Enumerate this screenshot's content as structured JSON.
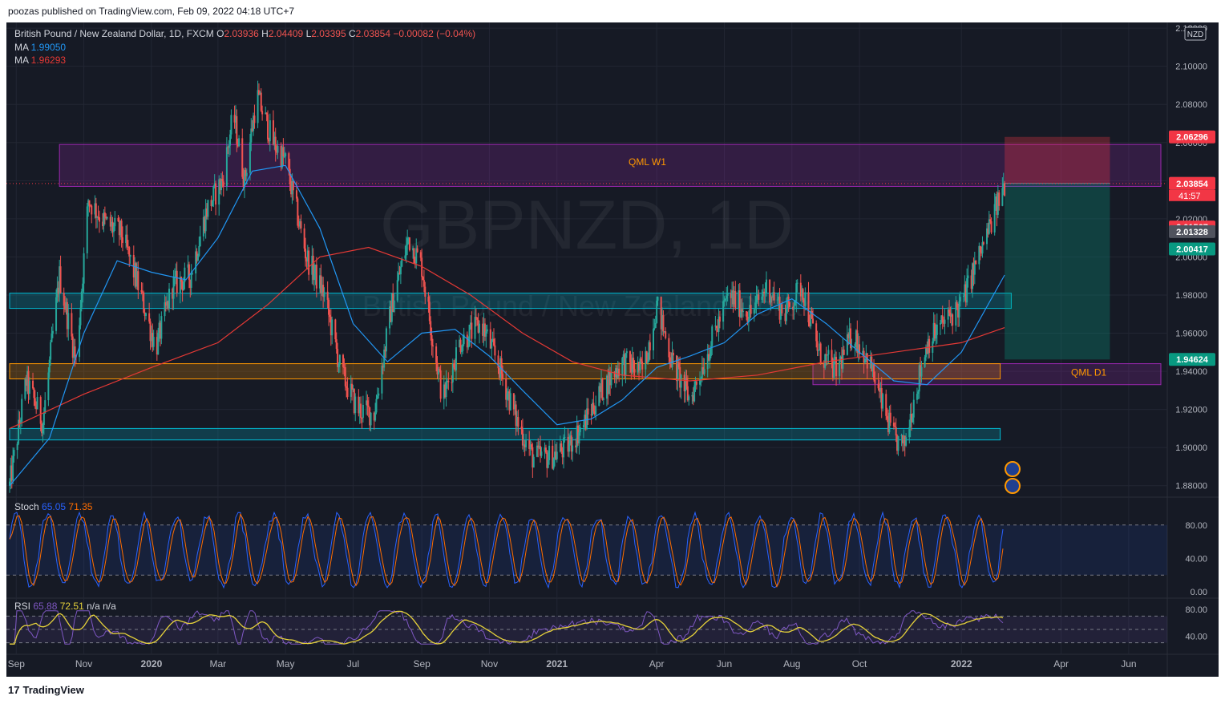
{
  "header": {
    "published_line": "poozas published on TradingView.com, Feb 09, 2022 04:18 UTC+7"
  },
  "footer": {
    "brand": "TradingView",
    "logo_glyph": "17"
  },
  "watermark": {
    "symbol": "GBPNZD, 1D",
    "name": "British Pound / New Zealand Dollar"
  },
  "legend": {
    "title": "British Pound / New Zealand Dollar, 1D, FXCM",
    "o_label": "O",
    "o": "2.03936",
    "h_label": "H",
    "h": "2.04409",
    "l_label": "L",
    "l": "2.03395",
    "c_label": "C",
    "c": "2.03854",
    "change": "−0.00082 (−0.04%)",
    "ma1_label": "MA",
    "ma1": "1.99050",
    "ma2_label": "MA",
    "ma2": "1.96293",
    "stoch_label": "Stoch",
    "stoch_k": "65.05",
    "stoch_d": "71.35",
    "rsi_label": "RSI",
    "rsi": "65.88",
    "rsi_ma": "72.51",
    "rsi_na1": "n/a",
    "rsi_na2": "n/a"
  },
  "currency_badge": "NZD",
  "countdown": "41:57",
  "annotations": {
    "zone_top": "QML W1",
    "zone_right": "QML D1"
  },
  "colors": {
    "background": "#161a25",
    "grid": "#222633",
    "up": "#26a69a",
    "down": "#ef5350",
    "ma_fast": "#2196f3",
    "ma_slow": "#e53935",
    "stoch_k": "#2962ff",
    "stoch_d": "#ff6d00",
    "rsi": "#7e57c2",
    "rsi_ma": "#e6d23a",
    "zone_purple": "#9c27b0",
    "zone_cyan": "#00bcd4",
    "zone_orange": "#ff9800"
  },
  "chart_data": {
    "type": "candlestick",
    "title": "British Pound / New Zealand Dollar, 1D, FXCM",
    "y_axis": {
      "ticks": [
        "2.12000",
        "2.10000",
        "2.08000",
        "2.06000",
        "2.04000",
        "2.02000",
        "2.00000",
        "1.98000",
        "1.96000",
        "1.94000",
        "1.92000",
        "1.90000",
        "1.88000"
      ],
      "ylim": [
        1.874,
        2.123
      ]
    },
    "x_axis": {
      "ticks": [
        "Sep",
        "Nov",
        "2020",
        "Mar",
        "May",
        "Jul",
        "Sep",
        "Nov",
        "2021",
        "Apr",
        "Jun",
        "Aug",
        "Oct",
        "2022",
        "Apr",
        "Jun"
      ]
    },
    "price_labels": [
      {
        "value": "2.06296",
        "color": "#f23645"
      },
      {
        "value": "2.03862",
        "color": "#50535e"
      },
      {
        "value": "2.03854",
        "color": "#f23645"
      },
      {
        "value": "2.01567",
        "color": "#f23645"
      },
      {
        "value": "2.01328",
        "color": "#50535e"
      },
      {
        "value": "2.00417",
        "color": "#089981"
      },
      {
        "value": "1.94624",
        "color": "#089981"
      }
    ],
    "price_path": [
      [
        "2019-08-26",
        1.88
      ],
      [
        "2019-09-10",
        1.935
      ],
      [
        "2019-09-25",
        1.913
      ],
      [
        "2019-10-10",
        1.99
      ],
      [
        "2019-10-25",
        1.945
      ],
      [
        "2019-11-05",
        2.03
      ],
      [
        "2019-11-20",
        2.018
      ],
      [
        "2019-12-05",
        2.012
      ],
      [
        "2019-12-20",
        1.985
      ],
      [
        "2020-01-05",
        1.952
      ],
      [
        "2020-01-20",
        1.985
      ],
      [
        "2020-02-05",
        1.99
      ],
      [
        "2020-02-20",
        2.025
      ],
      [
        "2020-03-05",
        2.04
      ],
      [
        "2020-03-15",
        2.075
      ],
      [
        "2020-03-25",
        2.04
      ],
      [
        "2020-04-05",
        2.085
      ],
      [
        "2020-04-20",
        2.06
      ],
      [
        "2020-05-01",
        2.05
      ],
      [
        "2020-05-20",
        2.0
      ],
      [
        "2020-06-05",
        1.98
      ],
      [
        "2020-06-20",
        1.94
      ],
      [
        "2020-07-05",
        1.92
      ],
      [
        "2020-07-20",
        1.918
      ],
      [
        "2020-08-05",
        1.975
      ],
      [
        "2020-08-20",
        2.01
      ],
      [
        "2020-09-01",
        1.995
      ],
      [
        "2020-09-10",
        1.96
      ],
      [
        "2020-09-20",
        1.925
      ],
      [
        "2020-10-05",
        1.955
      ],
      [
        "2020-10-25",
        1.965
      ],
      [
        "2020-11-10",
        1.942
      ],
      [
        "2020-11-25",
        1.915
      ],
      [
        "2020-12-10",
        1.895
      ],
      [
        "2020-12-25",
        1.895
      ],
      [
        "2021-01-10",
        1.9
      ],
      [
        "2021-01-25",
        1.912
      ],
      [
        "2021-02-10",
        1.93
      ],
      [
        "2021-03-01",
        1.945
      ],
      [
        "2021-03-20",
        1.94
      ],
      [
        "2021-04-01",
        1.975
      ],
      [
        "2021-04-15",
        1.945
      ],
      [
        "2021-05-01",
        1.925
      ],
      [
        "2021-05-20",
        1.955
      ],
      [
        "2021-06-05",
        1.98
      ],
      [
        "2021-06-25",
        1.97
      ],
      [
        "2021-07-10",
        1.985
      ],
      [
        "2021-07-25",
        1.97
      ],
      [
        "2021-08-10",
        1.985
      ],
      [
        "2021-08-25",
        1.95
      ],
      [
        "2021-09-10",
        1.94
      ],
      [
        "2021-09-25",
        1.96
      ],
      [
        "2021-10-10",
        1.945
      ],
      [
        "2021-10-20",
        1.925
      ],
      [
        "2021-11-01",
        1.905
      ],
      [
        "2021-11-10",
        1.9
      ],
      [
        "2021-11-20",
        1.928
      ],
      [
        "2021-12-01",
        1.955
      ],
      [
        "2021-12-15",
        1.965
      ],
      [
        "2022-01-01",
        1.975
      ],
      [
        "2022-01-10",
        1.99
      ],
      [
        "2022-01-20",
        2.005
      ],
      [
        "2022-02-01",
        2.025
      ],
      [
        "2022-02-09",
        2.0385
      ]
    ],
    "ma_fast_path": [
      [
        "2019-08-26",
        1.88
      ],
      [
        "2019-10-01",
        1.905
      ],
      [
        "2019-11-01",
        1.96
      ],
      [
        "2019-12-01",
        1.998
      ],
      [
        "2020-01-01",
        1.992
      ],
      [
        "2020-02-01",
        1.988
      ],
      [
        "2020-03-01",
        2.01
      ],
      [
        "2020-04-01",
        2.045
      ],
      [
        "2020-05-01",
        2.048
      ],
      [
        "2020-06-01",
        2.015
      ],
      [
        "2020-07-01",
        1.965
      ],
      [
        "2020-08-01",
        1.945
      ],
      [
        "2020-09-01",
        1.96
      ],
      [
        "2020-10-01",
        1.962
      ],
      [
        "2020-11-01",
        1.948
      ],
      [
        "2020-12-01",
        1.93
      ],
      [
        "2021-01-01",
        1.912
      ],
      [
        "2021-02-01",
        1.915
      ],
      [
        "2021-03-01",
        1.925
      ],
      [
        "2021-04-01",
        1.942
      ],
      [
        "2021-05-01",
        1.948
      ],
      [
        "2021-06-01",
        1.955
      ],
      [
        "2021-07-01",
        1.97
      ],
      [
        "2021-08-01",
        1.978
      ],
      [
        "2021-09-01",
        1.965
      ],
      [
        "2021-10-01",
        1.95
      ],
      [
        "2021-11-01",
        1.935
      ],
      [
        "2021-12-01",
        1.933
      ],
      [
        "2022-01-01",
        1.95
      ],
      [
        "2022-02-09",
        1.9905
      ]
    ],
    "ma_slow_path": [
      [
        "2019-08-26",
        1.91
      ],
      [
        "2019-11-01",
        1.928
      ],
      [
        "2020-01-01",
        1.942
      ],
      [
        "2020-03-01",
        1.955
      ],
      [
        "2020-04-15",
        1.975
      ],
      [
        "2020-06-01",
        2.0
      ],
      [
        "2020-07-15",
        2.005
      ],
      [
        "2020-09-01",
        1.995
      ],
      [
        "2020-10-15",
        1.98
      ],
      [
        "2020-12-01",
        1.96
      ],
      [
        "2021-01-15",
        1.945
      ],
      [
        "2021-03-01",
        1.938
      ],
      [
        "2021-05-01",
        1.935
      ],
      [
        "2021-07-01",
        1.938
      ],
      [
        "2021-09-01",
        1.945
      ],
      [
        "2021-11-01",
        1.95
      ],
      [
        "2022-01-01",
        1.955
      ],
      [
        "2022-02-09",
        1.96293
      ]
    ],
    "zones": [
      {
        "name": "QML W1",
        "from": "2019-10-10",
        "to": "2022-06-30",
        "top": 2.059,
        "bottom": 2.037,
        "color": "#9c27b0"
      },
      {
        "name": "QML D1",
        "from": "2021-08-20",
        "to": "2022-06-30",
        "top": 1.944,
        "bottom": 1.933,
        "color": "#9c27b0"
      },
      {
        "name": "",
        "from": "2019-08-26",
        "to": "2022-02-15",
        "top": 1.981,
        "bottom": 1.973,
        "color": "#00bcd4"
      },
      {
        "name": "",
        "from": "2019-08-26",
        "to": "2022-02-05",
        "top": 1.91,
        "bottom": 1.904,
        "color": "#00bcd4"
      },
      {
        "name": "",
        "from": "2019-08-26",
        "to": "2022-02-05",
        "top": 1.944,
        "bottom": 1.936,
        "color": "#ff9800"
      }
    ],
    "position": {
      "entry": 2.0386,
      "stop": 2.06296,
      "target": 1.94624,
      "from": "2022-02-09",
      "to": "2022-05-15"
    },
    "stoch_range": [
      0,
      100
    ],
    "stoch_ticks": [
      "80.00",
      "40.00",
      "0.00"
    ],
    "rsi_ticks": [
      "80.00",
      "40.00"
    ]
  }
}
